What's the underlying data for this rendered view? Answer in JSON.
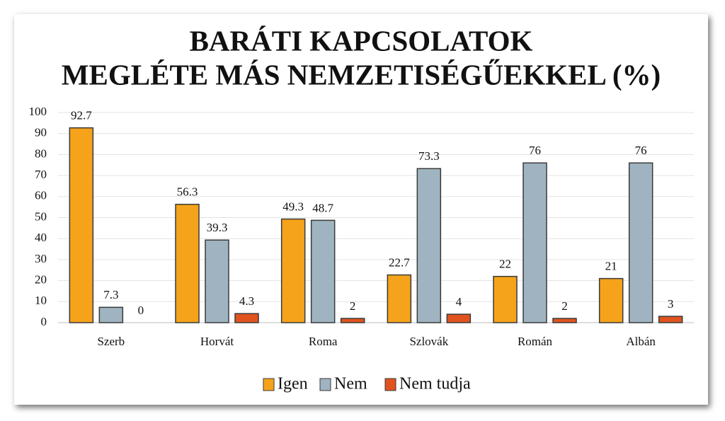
{
  "chart_data": {
    "type": "bar",
    "title": [
      "BARÁTI KAPCSOLATOK",
      "MEGLÉTE MÁS NEMZETISÉGŰEKKEL (%)"
    ],
    "categories": [
      "Szerb",
      "Horvát",
      "Roma",
      "Szlovák",
      "Román",
      "Albán"
    ],
    "series": [
      {
        "name": "Igen",
        "color": "#f5a31a",
        "values": [
          92.7,
          56.3,
          49.3,
          22.7,
          22,
          21
        ]
      },
      {
        "name": "Nem",
        "color": "#9fb4c0",
        "values": [
          7.3,
          39.3,
          48.7,
          73.3,
          76,
          76
        ]
      },
      {
        "name": "Nem tudja",
        "color": "#e0531f",
        "values": [
          0,
          4.3,
          2,
          4,
          2,
          3
        ]
      }
    ],
    "ylim": [
      0,
      100
    ],
    "yticks": [
      0,
      10,
      20,
      30,
      40,
      50,
      60,
      70,
      80,
      90,
      100
    ],
    "grid": true,
    "legend": "bottom"
  }
}
